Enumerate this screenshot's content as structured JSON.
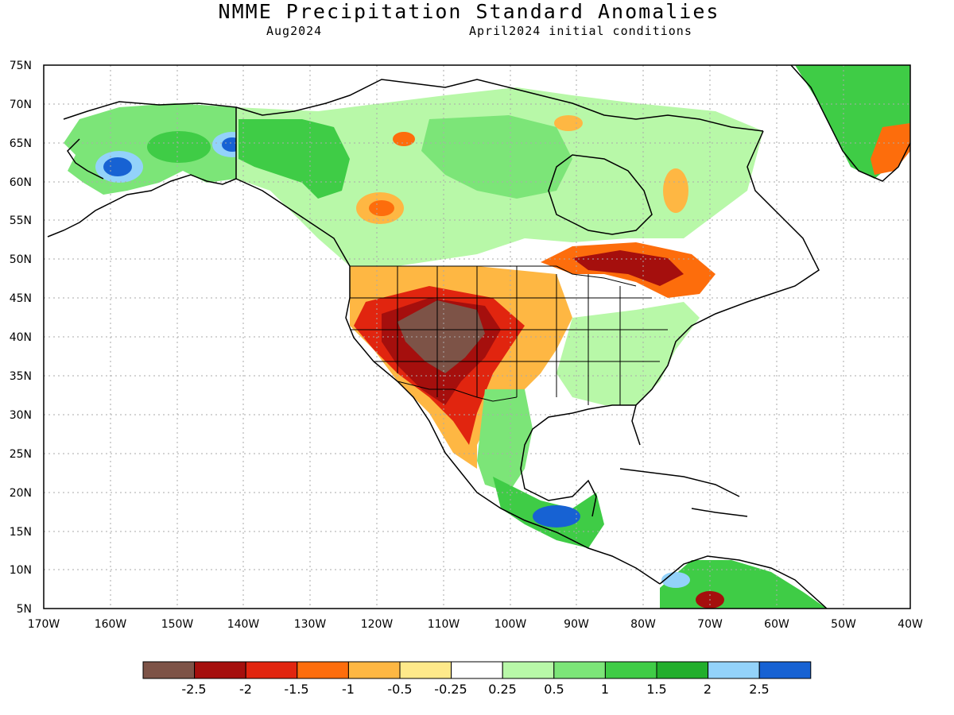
{
  "header": {
    "title": "NMME Precipitation Standard Anomalies",
    "target_month": "Aug2024",
    "initial_conditions": "April2024 initial conditions"
  },
  "map": {
    "lon_range": [
      -170,
      -40
    ],
    "lat_range": [
      5,
      75
    ],
    "lat_ticks": [
      "75N",
      "70N",
      "65N",
      "60N",
      "55N",
      "50N",
      "45N",
      "40N",
      "35N",
      "30N",
      "25N",
      "20N",
      "15N",
      "10N",
      "5N"
    ],
    "lon_ticks": [
      "170W",
      "160W",
      "150W",
      "140W",
      "130W",
      "120W",
      "110W",
      "100W",
      "90W",
      "80W",
      "70W",
      "60W",
      "50W",
      "40W"
    ],
    "colors": {
      "ocean": "#ffffff",
      "coast": "#000000",
      "grid": "#aaaaaa"
    }
  },
  "colorbar": {
    "colors": [
      "#7d5347",
      "#a50f0d",
      "#e1250f",
      "#fd6d0c",
      "#feb743",
      "#fee98a",
      "#ffffff",
      "#b8f8a8",
      "#7ce578",
      "#3fcc46",
      "#22ae2c",
      "#93d2fa",
      "#1762d3"
    ],
    "labels": [
      "-2.5",
      "-2",
      "-1.5",
      "-1",
      "-0.5",
      "-0.25",
      "0.25",
      "0.5",
      "1",
      "1.5",
      "2",
      "2.5"
    ]
  }
}
